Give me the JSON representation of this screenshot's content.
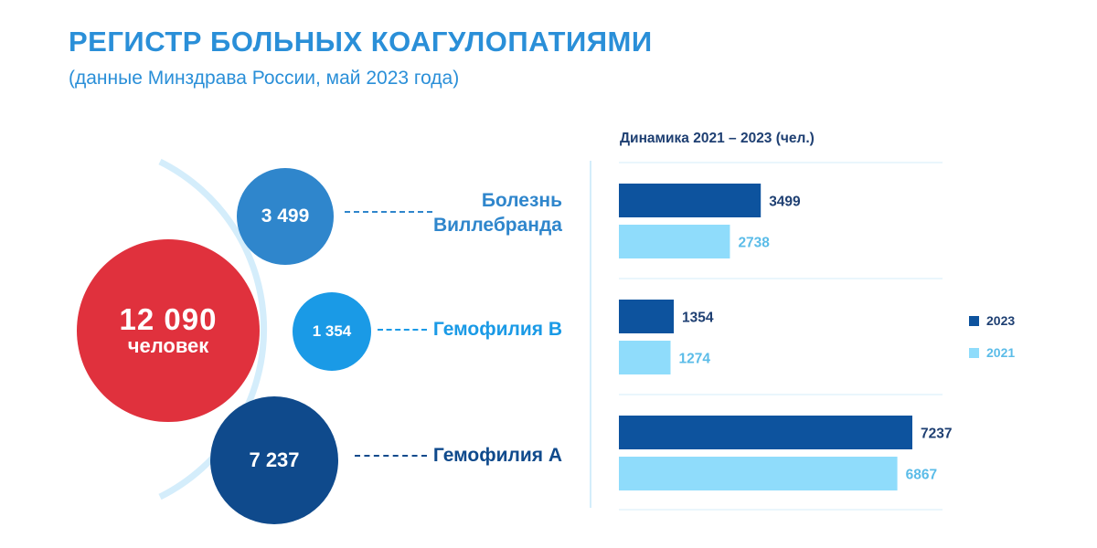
{
  "header": {
    "title": "РЕГИСТР БОЛЬНЫХ КОАГУЛОПАТИЯМИ",
    "subtitle": "(данные Минздрава России, май 2023 года)"
  },
  "infographic": {
    "total": {
      "value": "12 090",
      "unit": "человек"
    },
    "items": [
      {
        "value": "3 499",
        "label_line1": "Болезнь",
        "label_line2": "Виллебранда"
      },
      {
        "value": "1 354",
        "label_line1": "Гемофилия В"
      },
      {
        "value": "7 237",
        "label_line1": "Гемофилия А"
      }
    ]
  },
  "colors": {
    "title": "#2a8fd8",
    "total_bubble": "#e0313d",
    "bubble_vwd": "#2f86cc",
    "bubble_hb": "#1a9ae6",
    "bubble_ha": "#0f4a8c",
    "series_2023": "#0d539e",
    "series_2021": "#8fdcfb",
    "label_2023": "#1e3f72",
    "label_2021": "#5bbce8"
  },
  "chart_data": {
    "type": "bar",
    "orientation": "horizontal",
    "title": "Динамика 2021 – 2023 (чел.)",
    "categories": [
      "Болезнь Виллебранда",
      "Гемофилия В",
      "Гемофилия А"
    ],
    "series": [
      {
        "name": "2023",
        "values": [
          3499,
          1354,
          7237
        ]
      },
      {
        "name": "2021",
        "values": [
          2738,
          1274,
          6867
        ]
      }
    ],
    "xlim": [
      0,
      8000
    ],
    "legend": "right",
    "grid": false
  }
}
